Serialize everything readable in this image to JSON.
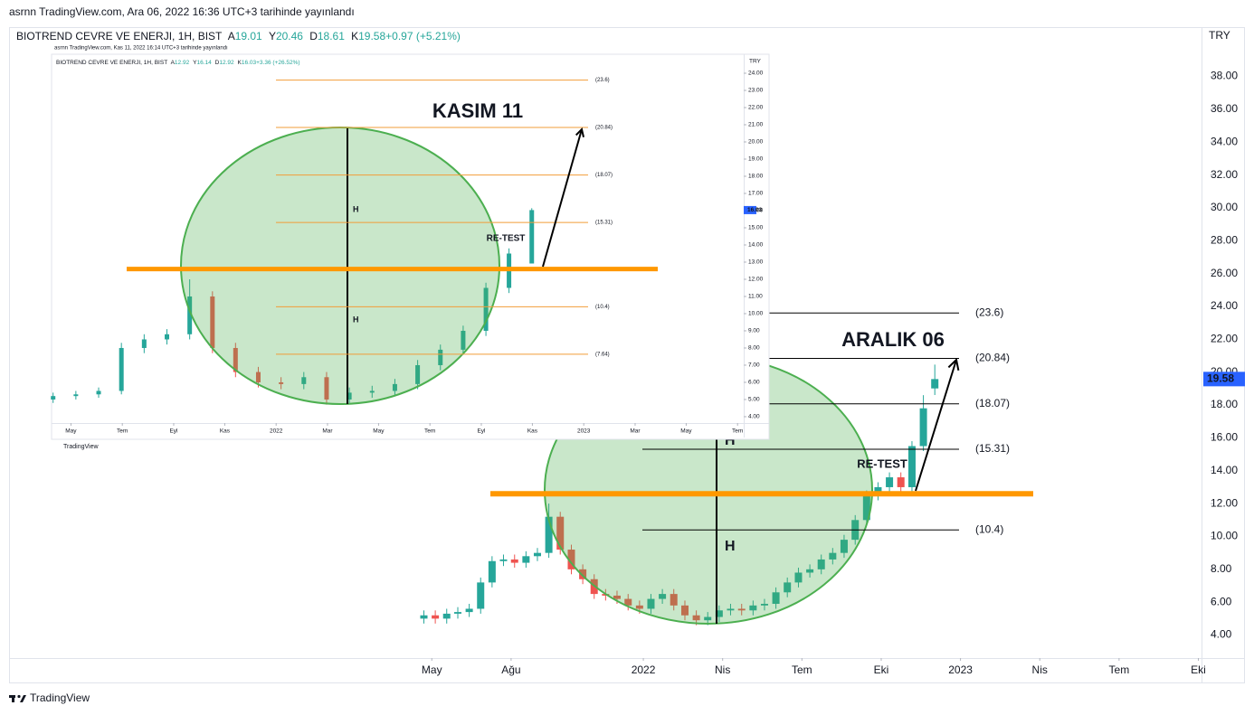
{
  "header": {
    "published": "asrnn TradingView.com, Ara 06, 2022 16:36 UTC+3 tarihinde yayınlandı"
  },
  "chart_data": [
    {
      "type": "candlestick",
      "title": "BIOTREND CEVRE VE ENERJI, 1H, BIST",
      "ohlc_legend": [
        {
          "key": "A",
          "value": "19.01"
        },
        {
          "key": "Y",
          "value": "20.46"
        },
        {
          "key": "D",
          "value": "18.61"
        },
        {
          "key": "K",
          "value": "19.58"
        },
        {
          "key": "",
          "value": "+0.97 (+5.21%)"
        }
      ],
      "y_unit": "TRY",
      "watermark": "TradingView",
      "up_color": "#26a69a",
      "down_color": "#ef5350",
      "x": [
        2021.308,
        2021.344,
        2021.38,
        2021.415,
        2021.451,
        2021.487,
        2021.523,
        2021.559,
        2021.594,
        2021.63,
        2021.666,
        2021.702,
        2021.738,
        2021.773,
        2021.809,
        2021.845,
        2021.881,
        2021.917,
        2021.952,
        2021.988,
        2022.024,
        2022.06,
        2022.096,
        2022.131,
        2022.167,
        2022.203,
        2022.239,
        2022.275,
        2022.31,
        2022.346,
        2022.382,
        2022.418,
        2022.454,
        2022.489,
        2022.525,
        2022.561,
        2022.597,
        2022.633,
        2022.668,
        2022.704,
        2022.74,
        2022.776,
        2022.812,
        2022.847,
        2022.883,
        2022.919
      ],
      "open": [
        5.0,
        5.2,
        5.0,
        5.3,
        5.4,
        5.6,
        7.2,
        8.5,
        8.6,
        8.4,
        8.8,
        9.0,
        11.2,
        9.2,
        8.0,
        7.4,
        6.5,
        6.4,
        6.2,
        5.8,
        5.6,
        6.2,
        6.5,
        5.8,
        5.2,
        4.9,
        5.1,
        5.5,
        5.6,
        5.5,
        5.8,
        5.9,
        6.6,
        7.2,
        7.8,
        8.0,
        8.6,
        9.0,
        9.8,
        11.0,
        12.5,
        13.0,
        13.6,
        13.0,
        15.5,
        19.01
      ],
      "high": [
        5.5,
        5.5,
        5.6,
        5.7,
        5.9,
        7.5,
        8.8,
        8.9,
        8.9,
        9.1,
        9.3,
        12.0,
        11.5,
        9.5,
        8.3,
        7.7,
        6.8,
        6.7,
        6.5,
        6.1,
        6.5,
        6.8,
        6.8,
        6.1,
        5.5,
        5.4,
        5.8,
        5.9,
        5.9,
        6.1,
        6.2,
        6.9,
        7.5,
        8.1,
        8.3,
        8.9,
        9.3,
        10.1,
        11.3,
        12.8,
        13.3,
        13.9,
        13.9,
        15.8,
        18.6,
        20.46
      ],
      "low": [
        4.7,
        4.7,
        4.7,
        5.0,
        5.1,
        5.3,
        6.9,
        8.2,
        8.1,
        8.1,
        8.5,
        8.7,
        8.9,
        7.7,
        7.1,
        6.2,
        6.1,
        5.9,
        5.5,
        5.3,
        5.3,
        5.9,
        5.5,
        4.9,
        4.6,
        4.6,
        4.8,
        5.2,
        5.2,
        5.2,
        5.5,
        5.6,
        6.3,
        6.9,
        7.5,
        7.7,
        8.3,
        8.7,
        9.5,
        10.7,
        12.2,
        12.7,
        12.7,
        12.7,
        15.2,
        18.61
      ],
      "close": [
        5.2,
        5.0,
        5.3,
        5.4,
        5.6,
        7.2,
        8.5,
        8.6,
        8.4,
        8.8,
        9.0,
        11.2,
        9.2,
        8.0,
        7.4,
        6.5,
        6.4,
        6.2,
        5.8,
        5.6,
        6.2,
        6.5,
        5.8,
        5.2,
        4.9,
        5.1,
        5.5,
        5.6,
        5.5,
        5.8,
        5.9,
        6.6,
        7.2,
        7.8,
        8.0,
        8.6,
        9.0,
        9.8,
        11.0,
        12.5,
        13.0,
        13.6,
        13.0,
        15.5,
        17.8,
        19.58
      ],
      "last_price_color": "#2962ff",
      "xlim": [
        2020.0,
        2023.76
      ],
      "xticks": [
        {
          "value": 2021.333,
          "label": "May"
        },
        {
          "value": 2021.583,
          "label": "Ağu"
        },
        2022,
        {
          "value": 2022.25,
          "label": "Nis"
        },
        {
          "value": 2022.5,
          "label": "Tem"
        },
        {
          "value": 2022.75,
          "label": "Eki"
        },
        2023,
        {
          "value": 2023.25,
          "label": "Nis"
        },
        {
          "value": 2023.5,
          "label": "Tem"
        },
        {
          "value": 2023.75,
          "label": "Eki"
        }
      ],
      "ylim": [
        2.6,
        41.0
      ],
      "yticks": [
        {
          "value": 4,
          "label": "4.00"
        },
        {
          "value": 6,
          "label": "6.00"
        },
        {
          "value": 8,
          "label": "8.00"
        },
        {
          "value": 10,
          "label": "10.00"
        },
        {
          "value": 12,
          "label": "12.00"
        },
        {
          "value": 14,
          "label": "14.00"
        },
        {
          "value": 16,
          "label": "16.00"
        },
        {
          "value": 18,
          "label": "18.00"
        },
        {
          "value": 20,
          "label": "20.00"
        },
        {
          "value": 22,
          "label": "22.00"
        },
        {
          "value": 24,
          "label": "24.00"
        },
        {
          "value": 26,
          "label": "26.00"
        },
        {
          "value": 28,
          "label": "28.00"
        },
        {
          "value": 30,
          "label": "30.00"
        },
        {
          "value": 32,
          "label": "32.00"
        },
        {
          "value": 34,
          "label": "34.00"
        },
        {
          "value": 36,
          "label": "36.00"
        },
        {
          "value": 38,
          "label": "38.00"
        }
      ],
      "fib_levels": [
        {
          "value": 23.6,
          "label": "(23.6)"
        },
        {
          "value": 20.84,
          "label": "(20.84)"
        },
        {
          "value": 18.07,
          "label": "(18.07)"
        },
        {
          "value": 15.31,
          "label": "(15.31)"
        },
        {
          "value": 10.4,
          "label": "(10.4)"
        }
      ],
      "fib_color": "#000000",
      "support_level": 12.6,
      "support_color": "#ff9800",
      "pattern_color": "#4caf50",
      "pattern_labels": [
        "H",
        "H"
      ],
      "retest_label": "RE-TEST",
      "date_label": "ARALIK 06"
    },
    {
      "type": "candlestick",
      "subtitle": "asrnn TradingView.com, Kas 11, 2022 16:14 UTC+3 tarihinde yayınlandı",
      "title": "BIOTREND CEVRE VE ENERJI, 1H, BIST",
      "ohlc_legend": [
        {
          "key": "A",
          "value": "12.92"
        },
        {
          "key": "Y",
          "value": "16.14"
        },
        {
          "key": "D",
          "value": "12.92"
        },
        {
          "key": "K",
          "value": "16.03"
        },
        {
          "key": "",
          "value": "+3.36 (+26.52%)"
        }
      ],
      "y_unit": "TRY",
      "watermark": "TradingView",
      "up_color": "#26a69a",
      "down_color": "#ef5350",
      "x": [
        2021.275,
        2021.349,
        2021.423,
        2021.497,
        2021.571,
        2021.645,
        2021.719,
        2021.793,
        2021.868,
        2021.942,
        2022.016,
        2022.09,
        2022.164,
        2022.238,
        2022.312,
        2022.386,
        2022.46,
        2022.534,
        2022.608,
        2022.682,
        2022.757,
        2022.831
      ],
      "open": [
        5.0,
        5.2,
        5.3,
        5.5,
        8.0,
        8.5,
        8.8,
        11.0,
        8.0,
        6.6,
        6.0,
        5.9,
        6.3,
        5.0,
        5.4,
        5.5,
        5.9,
        7.0,
        7.9,
        9.0,
        11.5,
        12.92
      ],
      "high": [
        5.4,
        5.5,
        5.7,
        8.3,
        8.8,
        9.1,
        12.0,
        11.3,
        8.3,
        6.9,
        6.3,
        6.6,
        6.6,
        5.7,
        5.8,
        6.2,
        7.3,
        8.2,
        9.3,
        11.8,
        13.8,
        16.14
      ],
      "low": [
        4.8,
        5.0,
        5.1,
        5.3,
        7.7,
        8.2,
        8.5,
        7.7,
        6.3,
        5.7,
        5.6,
        5.6,
        4.7,
        4.8,
        5.1,
        5.2,
        5.6,
        6.7,
        7.6,
        8.7,
        11.2,
        12.92
      ],
      "close": [
        5.2,
        5.3,
        5.5,
        8.0,
        8.5,
        8.8,
        11.0,
        8.0,
        6.6,
        6.0,
        5.9,
        6.3,
        5.0,
        5.4,
        5.5,
        5.9,
        7.0,
        7.9,
        9.0,
        11.5,
        13.5,
        16.03
      ],
      "last_price_color": "#2962ff",
      "xlim": [
        2021.27,
        2023.52
      ],
      "xticks": [
        {
          "value": 2021.333,
          "label": "May"
        },
        {
          "value": 2021.5,
          "label": "Tem"
        },
        {
          "value": 2021.667,
          "label": "Eyl"
        },
        {
          "value": 2021.833,
          "label": "Kas"
        },
        2022,
        {
          "value": 2022.167,
          "label": "Mar"
        },
        {
          "value": 2022.333,
          "label": "May"
        },
        {
          "value": 2022.5,
          "label": "Tem"
        },
        {
          "value": 2022.667,
          "label": "Eyl"
        },
        {
          "value": 2022.833,
          "label": "Kas"
        },
        2023,
        {
          "value": 2023.167,
          "label": "Mar"
        },
        {
          "value": 2023.333,
          "label": "May"
        },
        {
          "value": 2023.5,
          "label": "Tem"
        }
      ],
      "ylim": [
        3.63,
        25.0
      ],
      "yticks": [
        {
          "value": 4,
          "label": "4.00"
        },
        {
          "value": 5,
          "label": "5.00"
        },
        {
          "value": 6,
          "label": "6.00"
        },
        {
          "value": 7,
          "label": "7.00"
        },
        {
          "value": 8,
          "label": "8.00"
        },
        {
          "value": 9,
          "label": "9.00"
        },
        {
          "value": 10,
          "label": "10.00"
        },
        {
          "value": 11,
          "label": "11.00"
        },
        {
          "value": 12,
          "label": "12.00"
        },
        {
          "value": 13,
          "label": "13.00"
        },
        {
          "value": 14,
          "label": "14.00"
        },
        {
          "value": 15,
          "label": "15.00"
        },
        {
          "value": 16,
          "label": "16.00"
        },
        {
          "value": 17,
          "label": "17.00"
        },
        {
          "value": 18,
          "label": "18.00"
        },
        {
          "value": 19,
          "label": "19.00"
        },
        {
          "value": 20,
          "label": "20.00"
        },
        {
          "value": 21,
          "label": "21.00"
        },
        {
          "value": 22,
          "label": "22.00"
        },
        {
          "value": 23,
          "label": "23.00"
        },
        {
          "value": 24,
          "label": "24.00"
        }
      ],
      "fib_levels": [
        {
          "value": 23.6,
          "label": "(23.6)"
        },
        {
          "value": 20.84,
          "label": "(20.84)"
        },
        {
          "value": 18.07,
          "label": "(18.07)"
        },
        {
          "value": 15.31,
          "label": "(15.31)"
        },
        {
          "value": 10.4,
          "label": "(10.4)"
        },
        {
          "value": 7.64,
          "label": "(7.64)"
        }
      ],
      "fib_color": "#f29d38",
      "support_level": 12.6,
      "support_color": "#ff9800",
      "pattern_color": "#4caf50",
      "pattern_labels": [
        "H",
        "H"
      ],
      "retest_label": "RE-TEST",
      "date_label": "KASIM 11"
    }
  ],
  "footer": {
    "brand": "TradingView"
  }
}
